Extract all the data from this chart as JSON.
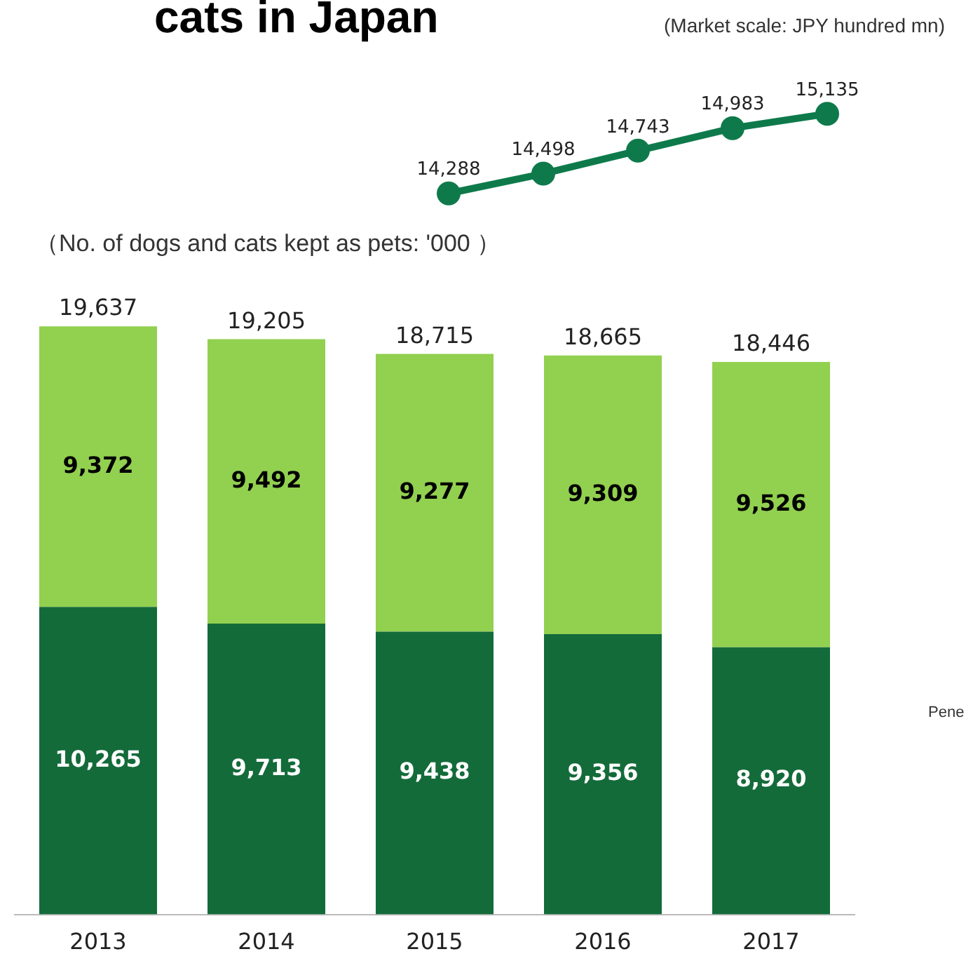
{
  "chart_data": [
    {
      "type": "line",
      "title": "cats in Japan",
      "annotations": [
        "(Market scale: JPY hundred mn)"
      ],
      "categories": [
        null,
        null,
        null,
        null,
        null
      ],
      "series": [
        {
          "color": "#0e7a4b",
          "values": [
            14288,
            14498,
            14743,
            14983,
            15135
          ],
          "value_labels": [
            "14,288",
            "14,498",
            "14,743",
            "14,983",
            "15,135"
          ]
        }
      ],
      "marker": "circle",
      "tick_labels": false,
      "grid": false,
      "legend": false
    },
    {
      "type": "bar",
      "stacked": true,
      "annotations": [
        "（No. of dogs and cats kept as pets: '000 ）",
        {
          "text": "Pene"
        }
      ],
      "categories": [
        "2013",
        "2014",
        "2015",
        "2016",
        "2017"
      ],
      "series": [
        {
          "color": "#146b3a",
          "values": [
            10265,
            9713,
            9438,
            9356,
            8920
          ],
          "value_labels": [
            "10,265",
            "9,713",
            "9,438",
            "9,356",
            "8,920"
          ]
        },
        {
          "color": "#92d050",
          "values": [
            9372,
            9492,
            9277,
            9309,
            9526
          ],
          "value_labels": [
            "9,372",
            "9,492",
            "9,277",
            "9,309",
            "9,526"
          ]
        }
      ],
      "totals": [
        "19,637",
        "19,205",
        "18,715",
        "18,665",
        "18,446"
      ],
      "tick_labels": "x",
      "grid": false,
      "legend": false
    }
  ]
}
